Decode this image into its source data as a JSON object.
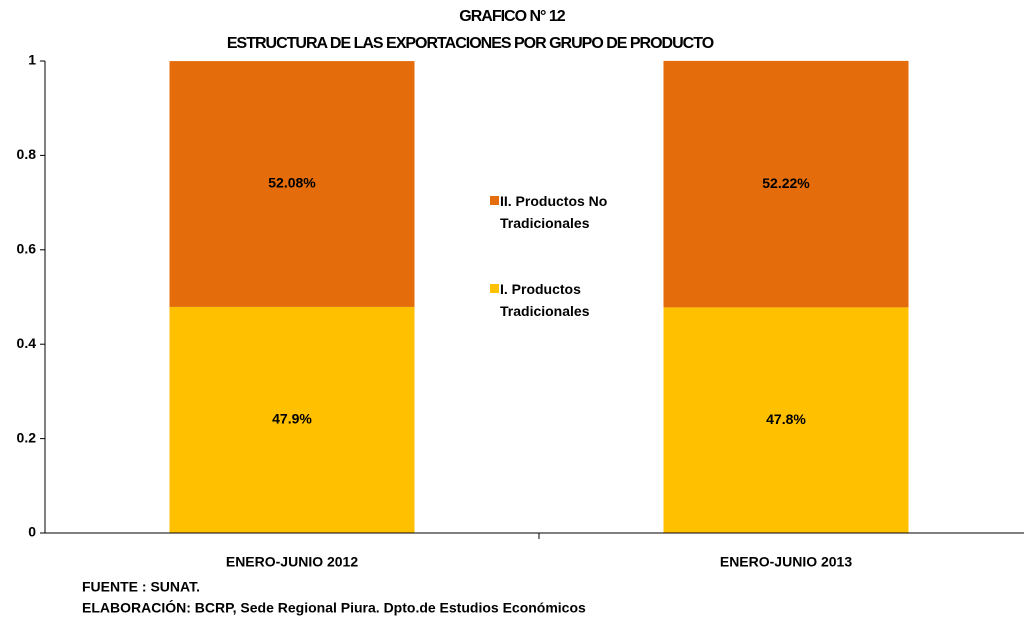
{
  "chart_data": {
    "type": "stacked_bar",
    "title": "GRAFICO N° 12",
    "subtitle": "ESTRUCTURA DE LAS EXPORTACIONES POR GRUPO DE PRODUCTO",
    "categories": [
      "ENERO-JUNIO 2012",
      "ENERO-JUNIO 2013"
    ],
    "series": [
      {
        "name": "I. Productos Tradicionales",
        "color": "#ffc000",
        "values": [
          0.479,
          0.478
        ],
        "value_labels": [
          "47.9%",
          "47.8%"
        ]
      },
      {
        "name": "II. Productos No Tradicionales",
        "color": "#e46c0a",
        "values": [
          0.5208,
          0.5222
        ],
        "value_labels": [
          "52.08%",
          "52.22%"
        ]
      }
    ],
    "ylim": [
      0,
      1
    ],
    "yticks": [
      0,
      0.2,
      0.4,
      0.6,
      0.8,
      1
    ],
    "notes": [
      "FUENTE : SUNAT.",
      "ELABORACIÓN: BCRP, Sede Regional Piura. Dpto.de Estudios Económicos"
    ]
  }
}
